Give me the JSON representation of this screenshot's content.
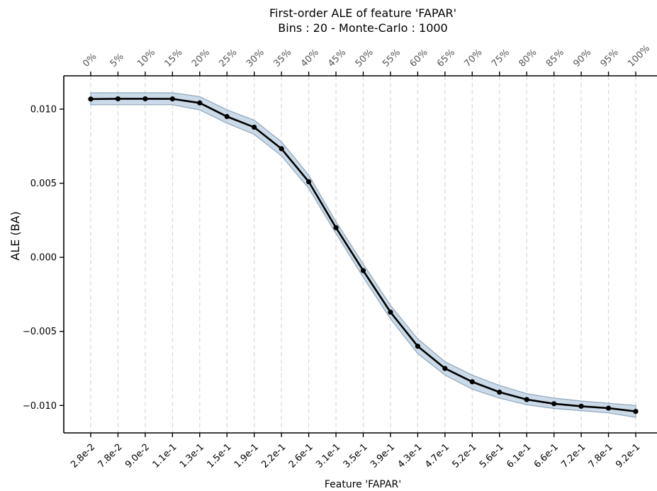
{
  "chart_data": {
    "type": "line",
    "title": "First-order ALE of feature 'FAPAR'",
    "subtitle": "Bins : 20 - Monte-Carlo : 1000",
    "xlabel": "Feature 'FAPAR'",
    "ylabel": "ALE (BA)",
    "x_tick_labels": [
      "2.8e-2",
      "7.8e-2",
      "9.0e-2",
      "1.1e-1",
      "1.3e-1",
      "1.5e-1",
      "1.9e-1",
      "2.2e-1",
      "2.6e-1",
      "3.1e-1",
      "3.5e-1",
      "3.9e-1",
      "4.3e-1",
      "4.7e-1",
      "5.2e-1",
      "5.6e-1",
      "6.1e-1",
      "6.6e-1",
      "7.2e-1",
      "7.8e-1",
      "9.2e-1"
    ],
    "top_tick_labels": [
      "0%",
      "5%",
      "10%",
      "15%",
      "20%",
      "25%",
      "30%",
      "35%",
      "40%",
      "45%",
      "50%",
      "55%",
      "60%",
      "65%",
      "70%",
      "75%",
      "80%",
      "85%",
      "90%",
      "95%",
      "100%"
    ],
    "y_ticks": [
      0.01,
      0.005,
      0.0,
      -0.005,
      -0.01
    ],
    "y_tick_labels": [
      "0.010",
      "0.005",
      "0.000",
      "−0.005",
      "−0.010"
    ],
    "ylim": [
      -0.01185,
      0.01225
    ],
    "series": [
      {
        "values": [
          0.01068,
          0.0107,
          0.0107,
          0.01069,
          0.01042,
          0.0095,
          0.00878,
          0.00733,
          0.0051,
          0.002,
          -0.0009,
          -0.0037,
          -0.006,
          -0.0075,
          -0.0084,
          -0.0091,
          -0.0096,
          -0.00988,
          -0.01005,
          -0.01018,
          -0.0104
        ],
        "lower": [
          0.0103,
          0.0103,
          0.0103,
          0.0103,
          0.00995,
          0.00905,
          0.0083,
          0.00685,
          0.00465,
          0.0016,
          -0.00135,
          -0.00415,
          -0.0065,
          -0.00795,
          -0.0089,
          -0.0095,
          -0.00995,
          -0.0102,
          -0.01035,
          -0.0105,
          -0.0108
        ],
        "upper": [
          0.0111,
          0.0111,
          0.0111,
          0.0111,
          0.01085,
          0.00995,
          0.00925,
          0.0078,
          0.00555,
          0.0024,
          -0.00045,
          -0.00325,
          -0.0055,
          -0.00705,
          -0.00795,
          -0.00865,
          -0.0092,
          -0.0095,
          -0.0097,
          -0.00985,
          -0.01
        ]
      }
    ],
    "grid": "vertical dashed",
    "colors": {
      "line": "#000000",
      "band": "#b8cde0",
      "band_edge": "#8fa6bd",
      "grid": "#d9d9d9"
    }
  }
}
